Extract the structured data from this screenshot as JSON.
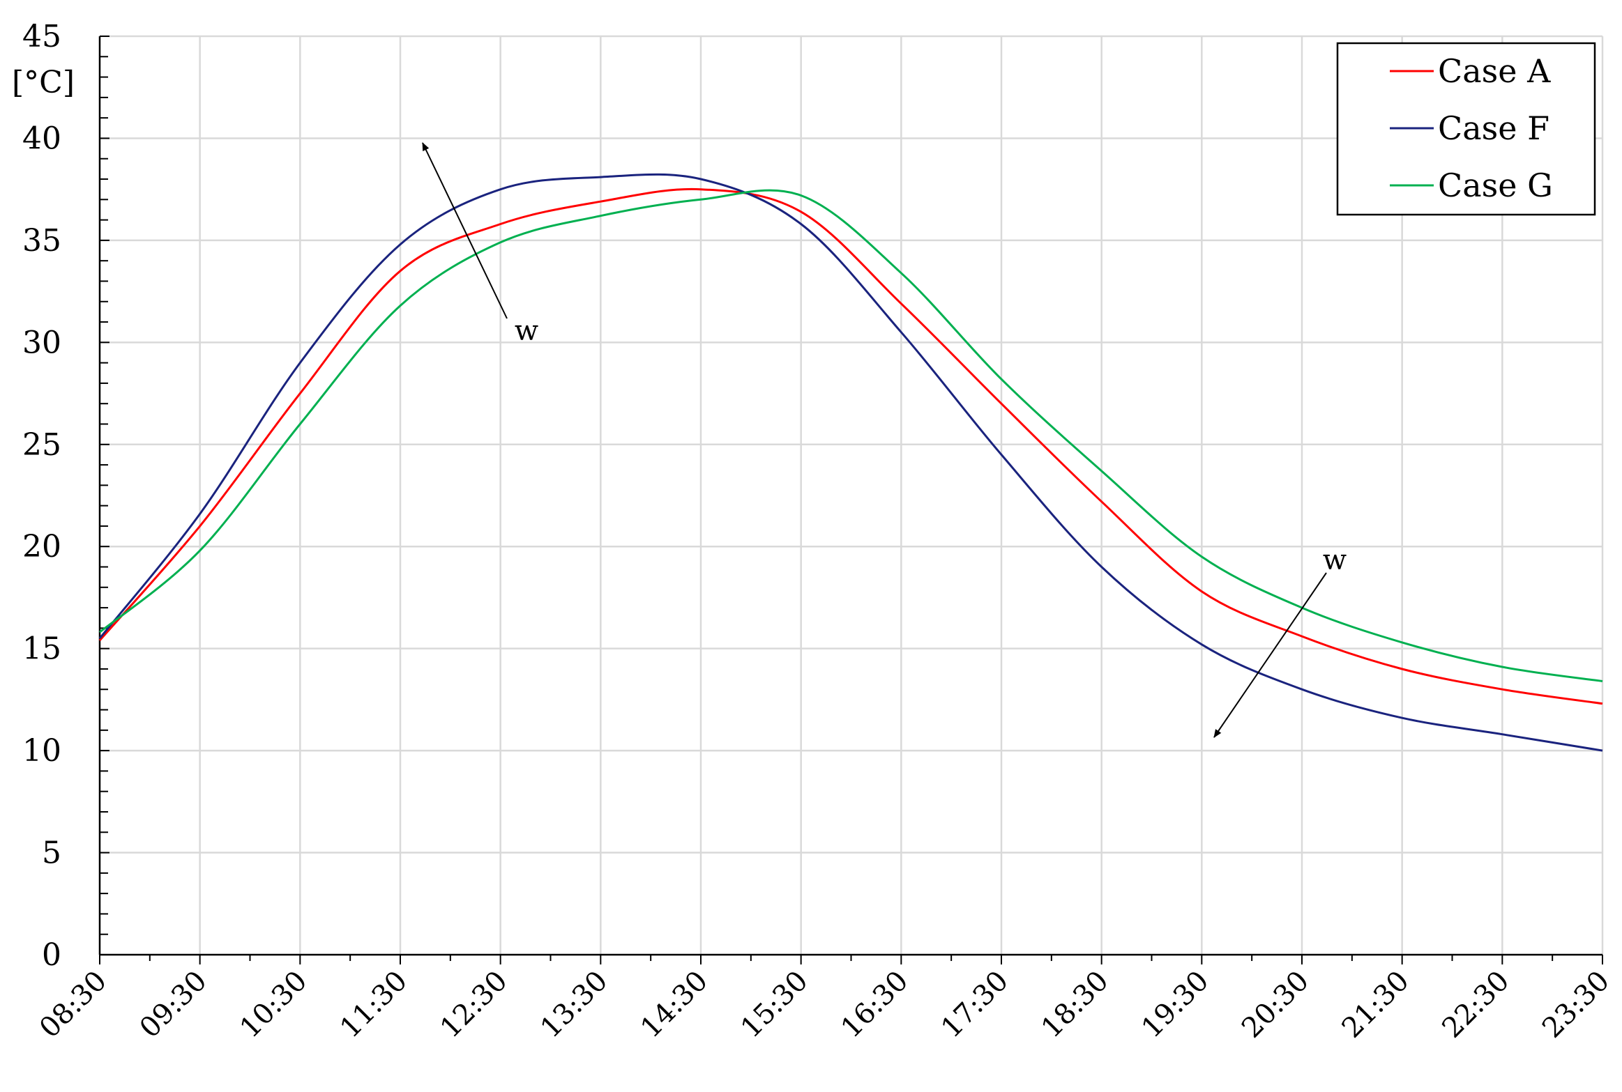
{
  "chart_data": {
    "type": "line",
    "ylabel": "[°C]",
    "xlabel": "",
    "ylim": [
      0,
      45
    ],
    "yticks": [
      0,
      5,
      10,
      15,
      20,
      25,
      30,
      35,
      40,
      45
    ],
    "x": [
      "08:30",
      "09:30",
      "10:30",
      "11:30",
      "12:30",
      "13:30",
      "14:30",
      "15:30",
      "16:30",
      "17:30",
      "18:30",
      "19:30",
      "20:30",
      "21:30",
      "22:30",
      "23:30"
    ],
    "grid": true,
    "legend": "top-right",
    "series": [
      {
        "name": "Case A",
        "color": "#ff0000",
        "values": [
          15.4,
          21.0,
          27.5,
          33.5,
          35.8,
          36.9,
          37.5,
          36.4,
          31.9,
          27.0,
          22.2,
          17.8,
          15.6,
          14.0,
          13.0,
          12.3
        ]
      },
      {
        "name": "Case F",
        "color": "#1a237e",
        "values": [
          15.5,
          21.6,
          29.0,
          34.8,
          37.5,
          38.1,
          38.0,
          35.8,
          30.5,
          24.5,
          19.0,
          15.2,
          13.0,
          11.6,
          10.8,
          10.0
        ]
      },
      {
        "name": "Case G",
        "color": "#00b050",
        "values": [
          15.8,
          19.8,
          26.0,
          31.8,
          34.9,
          36.2,
          37.0,
          37.2,
          33.4,
          28.2,
          23.7,
          19.5,
          17.0,
          15.3,
          14.1,
          13.4
        ]
      }
    ],
    "annotations": [
      {
        "text": "w",
        "direction": "up-left"
      },
      {
        "text": "w",
        "direction": "down-left"
      }
    ]
  }
}
